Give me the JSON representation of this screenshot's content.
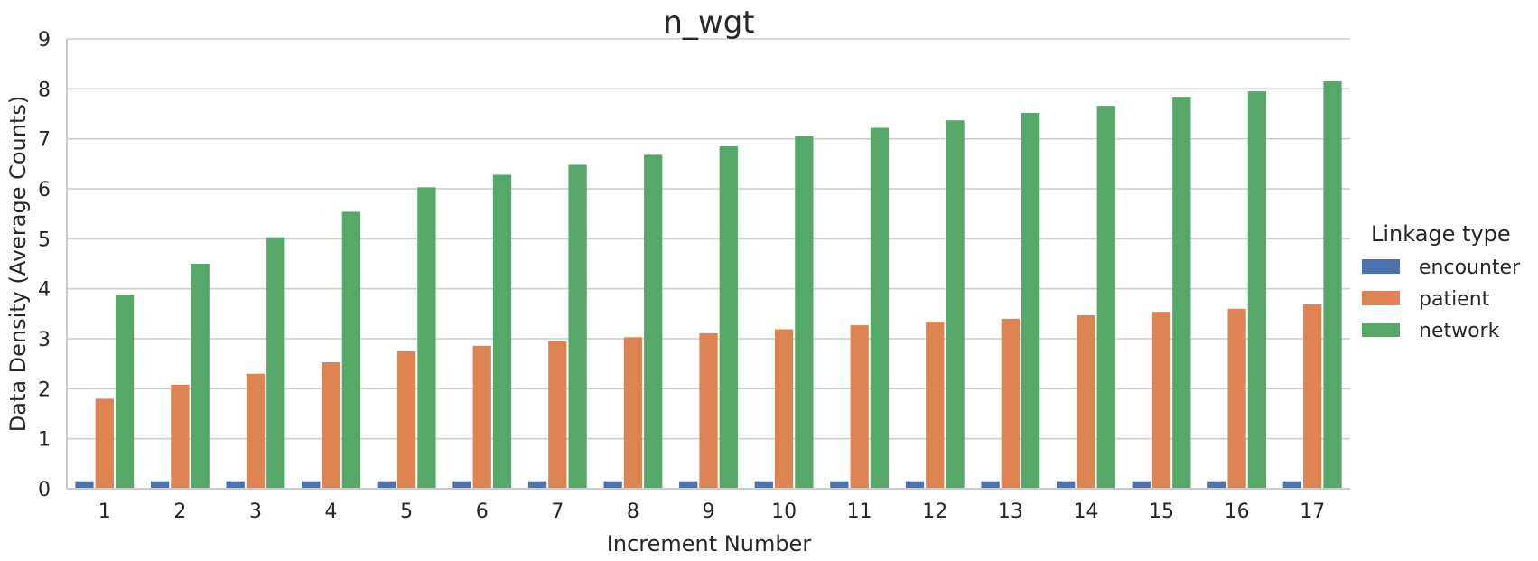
{
  "chart_data": {
    "type": "bar",
    "title": "n_wgt",
    "xlabel": "Increment Number",
    "ylabel": "Data Density (Average Counts)",
    "ylim": [
      0,
      9
    ],
    "yticks": [
      0,
      1,
      2,
      3,
      4,
      5,
      6,
      7,
      8,
      9
    ],
    "grid": true,
    "categories": [
      "1",
      "2",
      "3",
      "4",
      "5",
      "6",
      "7",
      "8",
      "9",
      "10",
      "11",
      "12",
      "13",
      "14",
      "15",
      "16",
      "17"
    ],
    "series": [
      {
        "name": "encounter",
        "color": "#4c72b0",
        "values": [
          0.15,
          0.15,
          0.15,
          0.15,
          0.15,
          0.15,
          0.15,
          0.15,
          0.15,
          0.15,
          0.15,
          0.15,
          0.15,
          0.15,
          0.15,
          0.15,
          0.15
        ]
      },
      {
        "name": "patient",
        "color": "#dd8452",
        "values": [
          1.8,
          2.08,
          2.3,
          2.53,
          2.75,
          2.86,
          2.95,
          3.03,
          3.11,
          3.19,
          3.27,
          3.34,
          3.4,
          3.47,
          3.54,
          3.6,
          3.69
        ]
      },
      {
        "name": "network",
        "color": "#55a868",
        "values": [
          3.88,
          4.5,
          5.03,
          5.54,
          6.03,
          6.28,
          6.48,
          6.68,
          6.85,
          7.05,
          7.22,
          7.37,
          7.52,
          7.66,
          7.84,
          7.95,
          8.15
        ]
      }
    ],
    "legend": {
      "title": "Linkage type",
      "position": "right"
    }
  }
}
